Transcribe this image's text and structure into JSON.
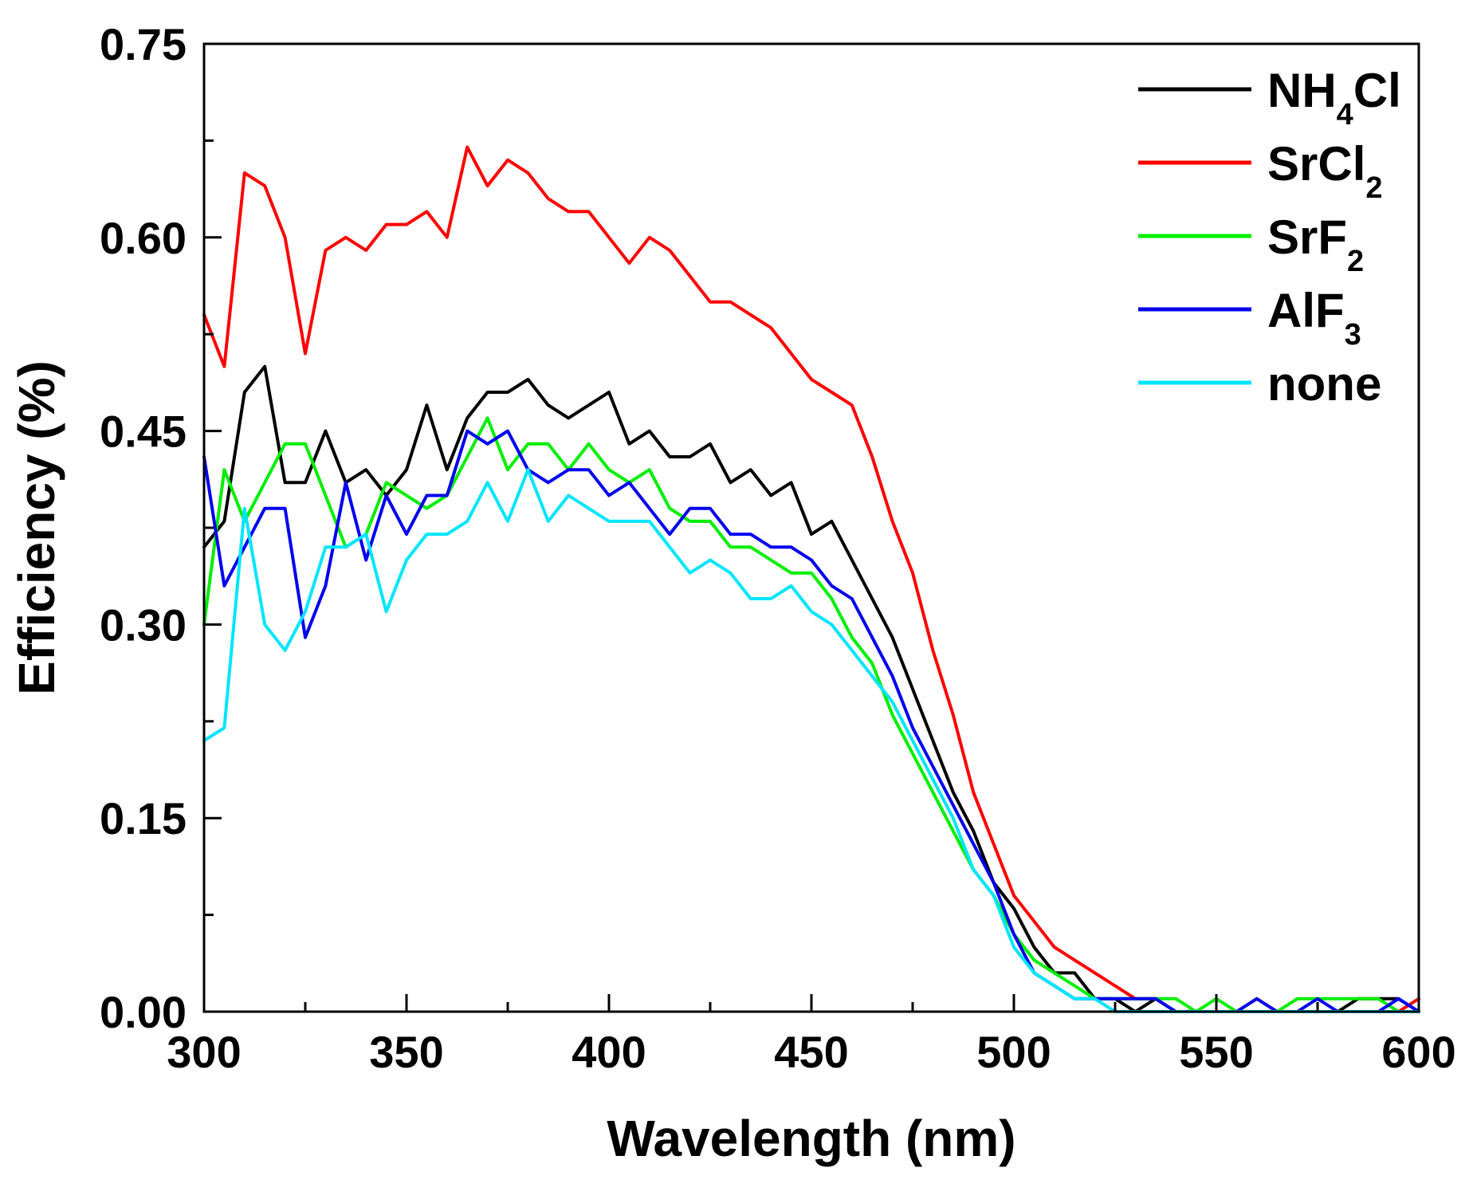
{
  "chart_data": {
    "type": "line",
    "title": "",
    "xlabel": "Wavelength (nm)",
    "ylabel": "Efficiency (%)",
    "xlim": [
      300,
      600
    ],
    "ylim": [
      0,
      0.75
    ],
    "x_ticks": [
      300,
      350,
      400,
      450,
      500,
      550,
      600
    ],
    "x_tick_labels": [
      "300",
      "350",
      "400",
      "450",
      "500",
      "550",
      "600"
    ],
    "y_ticks": [
      0,
      0.15,
      0.3,
      0.45,
      0.6,
      0.75
    ],
    "y_tick_labels": [
      "0.00",
      "0.15",
      "0.30",
      "0.45",
      "0.60",
      "0.75"
    ],
    "y_minor_ticks": [
      0.075,
      0.225,
      0.375,
      0.525,
      0.675
    ],
    "x_minor_ticks": [
      325,
      375,
      425,
      475,
      525,
      575
    ],
    "grid": false,
    "legend_position": "top-right",
    "x": [
      300,
      305,
      310,
      315,
      320,
      325,
      330,
      335,
      340,
      345,
      350,
      355,
      360,
      365,
      370,
      375,
      380,
      385,
      390,
      395,
      400,
      405,
      410,
      415,
      420,
      425,
      430,
      435,
      440,
      445,
      450,
      455,
      460,
      465,
      470,
      475,
      480,
      485,
      490,
      495,
      500,
      505,
      510,
      515,
      520,
      525,
      530,
      535,
      540,
      545,
      550,
      555,
      560,
      565,
      570,
      575,
      580,
      585,
      590,
      595,
      600
    ],
    "series": [
      {
        "name": "NH4Cl",
        "label_main": "NH",
        "label_sub": "4",
        "label_tail": "Cl",
        "color": "#000000",
        "values": [
          0.36,
          0.38,
          0.48,
          0.5,
          0.41,
          0.41,
          0.45,
          0.41,
          0.42,
          0.4,
          0.42,
          0.47,
          0.42,
          0.46,
          0.48,
          0.48,
          0.49,
          0.47,
          0.46,
          0.47,
          0.48,
          0.44,
          0.45,
          0.43,
          0.43,
          0.44,
          0.41,
          0.42,
          0.4,
          0.41,
          0.37,
          0.38,
          0.35,
          0.32,
          0.29,
          0.25,
          0.21,
          0.17,
          0.14,
          0.1,
          0.08,
          0.05,
          0.03,
          0.03,
          0.01,
          0.01,
          0.0,
          0.01,
          0.0,
          0.0,
          0.0,
          0.0,
          0.0,
          0.0,
          0.0,
          0.0,
          0.0,
          0.01,
          0.01,
          0.01,
          0.0
        ]
      },
      {
        "name": "SrCl2",
        "label_main": "SrCl",
        "label_sub": "2",
        "label_tail": "",
        "color": "#ff0000",
        "values": [
          0.54,
          0.5,
          0.65,
          0.64,
          0.6,
          0.51,
          0.59,
          0.6,
          0.59,
          0.61,
          0.61,
          0.62,
          0.6,
          0.67,
          0.64,
          0.66,
          0.65,
          0.63,
          0.62,
          0.62,
          0.6,
          0.58,
          0.6,
          0.59,
          0.57,
          0.55,
          0.55,
          0.54,
          0.53,
          0.51,
          0.49,
          0.48,
          0.47,
          0.43,
          0.38,
          0.34,
          0.28,
          0.23,
          0.17,
          0.13,
          0.09,
          0.07,
          0.05,
          0.04,
          0.03,
          0.02,
          0.01,
          0.01,
          0.0,
          0.0,
          0.0,
          0.0,
          0.01,
          0.0,
          0.0,
          0.0,
          0.0,
          0.0,
          0.0,
          0.0,
          0.01
        ]
      },
      {
        "name": "SrF2",
        "label_main": "SrF",
        "label_sub": "2",
        "label_tail": "",
        "color": "#00ee00",
        "values": [
          0.3,
          0.42,
          0.38,
          0.41,
          0.44,
          0.44,
          0.4,
          0.36,
          0.37,
          0.41,
          0.4,
          0.39,
          0.4,
          0.43,
          0.46,
          0.42,
          0.44,
          0.44,
          0.42,
          0.44,
          0.42,
          0.41,
          0.42,
          0.39,
          0.38,
          0.38,
          0.36,
          0.36,
          0.35,
          0.34,
          0.34,
          0.32,
          0.29,
          0.27,
          0.23,
          0.2,
          0.17,
          0.14,
          0.11,
          0.09,
          0.06,
          0.04,
          0.03,
          0.02,
          0.01,
          0.01,
          0.01,
          0.01,
          0.01,
          0.0,
          0.01,
          0.0,
          0.0,
          0.0,
          0.01,
          0.01,
          0.01,
          0.01,
          0.01,
          0.0,
          0.0
        ]
      },
      {
        "name": "AlF3",
        "label_main": "AlF",
        "label_sub": "3",
        "label_tail": "",
        "color": "#0000ee",
        "values": [
          0.43,
          0.33,
          0.36,
          0.39,
          0.39,
          0.29,
          0.33,
          0.41,
          0.35,
          0.4,
          0.37,
          0.4,
          0.4,
          0.45,
          0.44,
          0.45,
          0.42,
          0.41,
          0.42,
          0.42,
          0.4,
          0.41,
          0.39,
          0.37,
          0.39,
          0.39,
          0.37,
          0.37,
          0.36,
          0.36,
          0.35,
          0.33,
          0.32,
          0.29,
          0.26,
          0.22,
          0.19,
          0.16,
          0.13,
          0.1,
          0.06,
          0.03,
          0.02,
          0.01,
          0.01,
          0.01,
          0.01,
          0.01,
          0.0,
          0.0,
          0.0,
          0.0,
          0.01,
          0.0,
          0.0,
          0.01,
          0.0,
          0.0,
          0.0,
          0.01,
          0.0
        ]
      },
      {
        "name": "none",
        "label_main": "none",
        "label_sub": "",
        "label_tail": "",
        "color": "#00e5ff",
        "values": [
          0.21,
          0.22,
          0.39,
          0.3,
          0.28,
          0.31,
          0.36,
          0.36,
          0.37,
          0.31,
          0.35,
          0.37,
          0.37,
          0.38,
          0.41,
          0.38,
          0.42,
          0.38,
          0.4,
          0.39,
          0.38,
          0.38,
          0.38,
          0.36,
          0.34,
          0.35,
          0.34,
          0.32,
          0.32,
          0.33,
          0.31,
          0.3,
          0.28,
          0.26,
          0.24,
          0.21,
          0.18,
          0.15,
          0.11,
          0.09,
          0.05,
          0.03,
          0.02,
          0.01,
          0.01,
          0.0,
          0.0,
          0.0,
          0.0,
          0.0,
          0.0,
          0.0,
          0.0,
          0.0,
          0.0,
          0.0,
          0.0,
          0.0,
          0.0,
          0.0,
          0.0
        ]
      }
    ]
  }
}
